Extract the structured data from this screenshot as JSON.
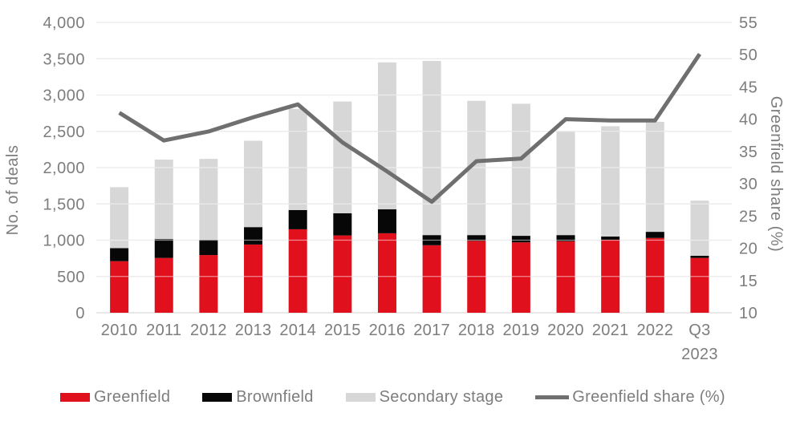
{
  "chart_data": {
    "type": "bar",
    "subtype": "stacked-bars-with-line",
    "categories": [
      "2010",
      "2011",
      "2012",
      "2013",
      "2014",
      "2015",
      "2016",
      "2017",
      "2018",
      "2019",
      "2020",
      "2021",
      "2022",
      "Q3 2023"
    ],
    "bar_series": [
      {
        "name": "Greenfield",
        "color": "#e0101c",
        "values": [
          710,
          755,
          795,
          940,
          1150,
          1065,
          1095,
          930,
          990,
          970,
          985,
          1005,
          1030,
          755
        ]
      },
      {
        "name": "Brownfield",
        "color": "#070707",
        "values": [
          180,
          260,
          210,
          240,
          265,
          305,
          330,
          140,
          80,
          90,
          85,
          45,
          85,
          30
        ]
      },
      {
        "name": "Secondary stage",
        "color": "#d7d7d7",
        "values": [
          840,
          1095,
          1115,
          1190,
          1395,
          1540,
          2025,
          2400,
          1850,
          1820,
          1430,
          1520,
          1515,
          760
        ]
      }
    ],
    "line_series": {
      "name": "Greenfield share (%)",
      "color": "#6f6f6f",
      "values": [
        41.0,
        36.7,
        38.1,
        40.3,
        42.3,
        36.4,
        31.9,
        27.2,
        33.5,
        33.9,
        40.0,
        39.8,
        39.8,
        50.1
      ]
    },
    "left_axis": {
      "label": "No. of deals",
      "min": 0,
      "max": 4000,
      "step": 500,
      "tick_labels": [
        "0",
        "500",
        "1,000",
        "1,500",
        "2,000",
        "2,500",
        "3,000",
        "3,500",
        "4,000"
      ]
    },
    "right_axis": {
      "label": "Greenfield share (%)",
      "min": 10,
      "max": 55,
      "step": 5,
      "tick_labels": [
        "10",
        "15",
        "20",
        "25",
        "30",
        "35",
        "40",
        "45",
        "50",
        "55"
      ]
    },
    "grid": {
      "on": true,
      "color": "#d9d9d9"
    },
    "text_color": "#7d7d7d",
    "legend_position": "bottom"
  }
}
